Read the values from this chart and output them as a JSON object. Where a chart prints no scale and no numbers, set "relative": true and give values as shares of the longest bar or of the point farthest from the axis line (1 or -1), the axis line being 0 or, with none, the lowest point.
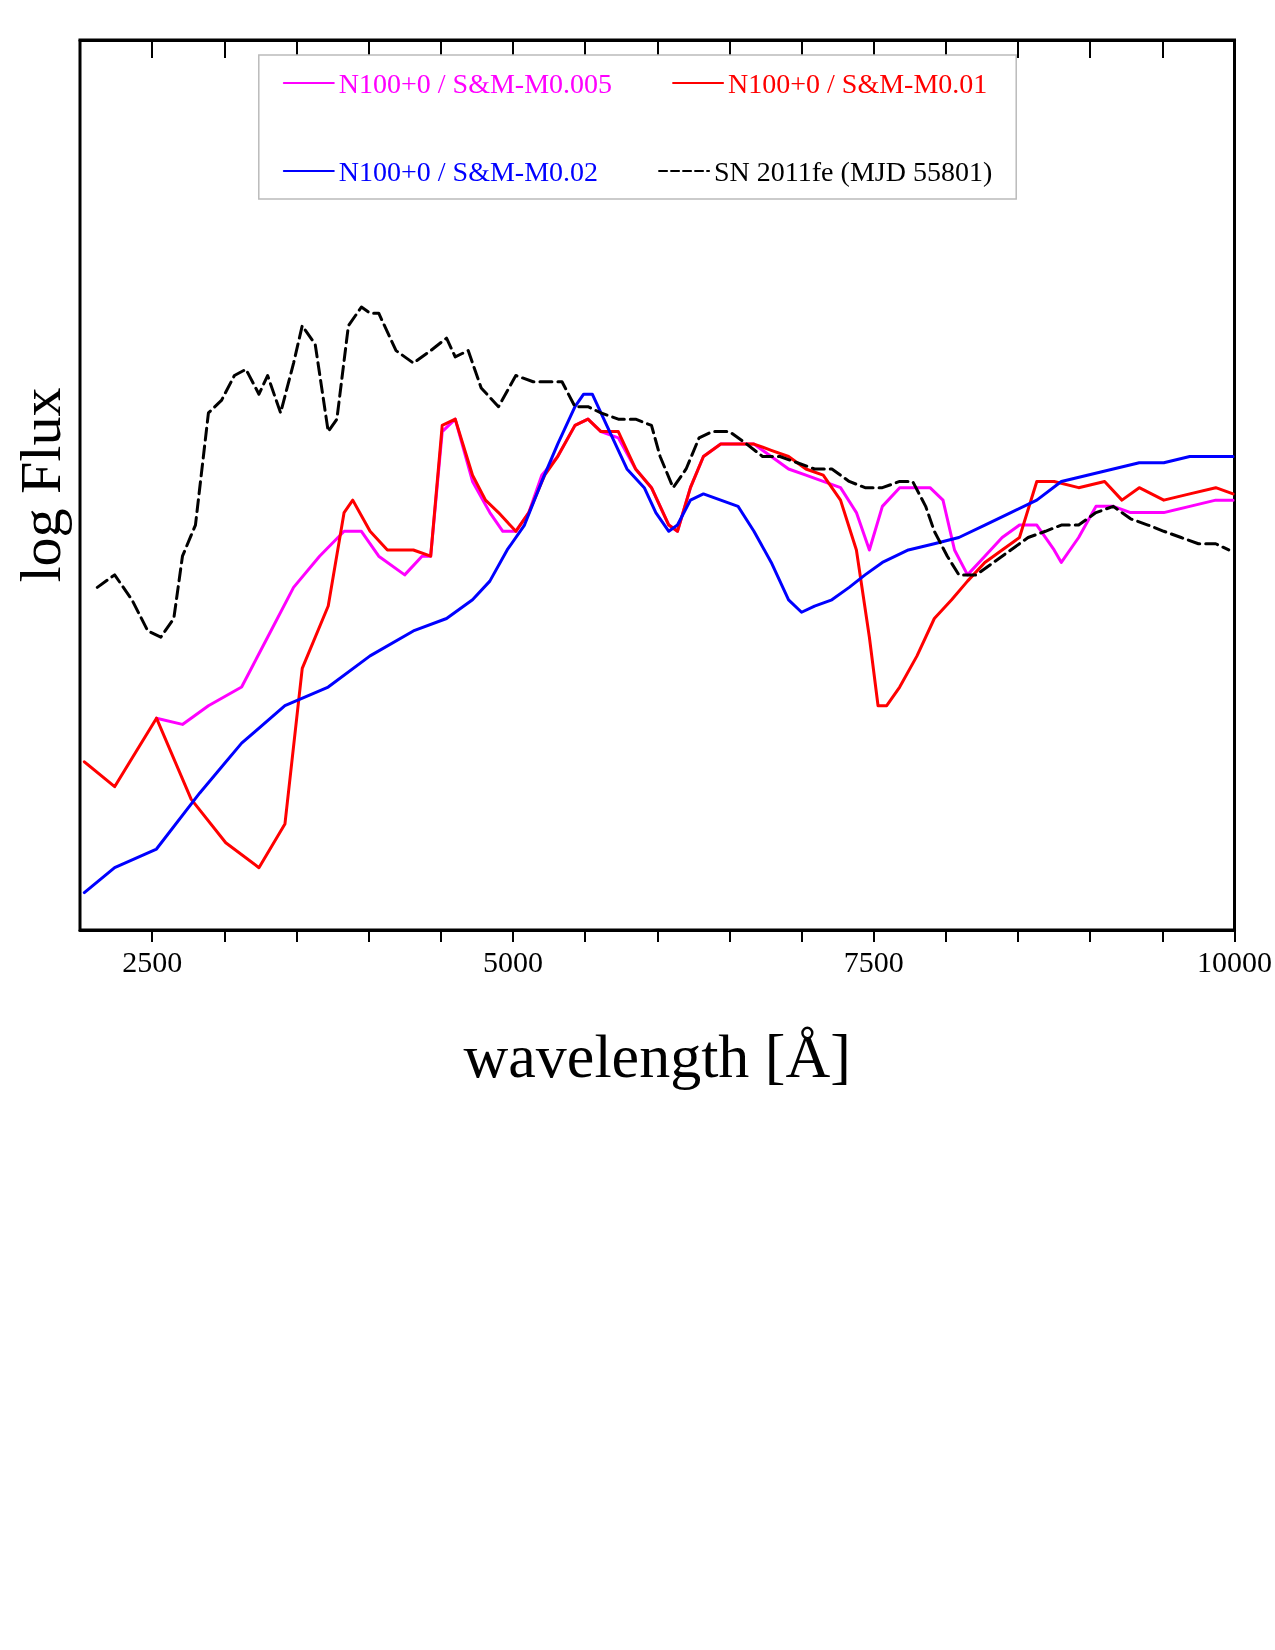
{
  "chart_data": {
    "type": "line",
    "relative": true,
    "xlabel": "wavelength [Å]",
    "ylabel": "log Flux",
    "xlim": [
      2000,
      10000
    ],
    "xticks": [
      2500,
      {
        "value": 3000,
        "label": null
      },
      {
        "value": 3500,
        "label": null
      },
      {
        "value": 4000,
        "label": null
      },
      {
        "value": 4500,
        "label": null
      },
      5000,
      {
        "value": 5500,
        "label": null
      },
      {
        "value": 6000,
        "label": null
      },
      {
        "value": 6500,
        "label": null
      },
      {
        "value": 7000,
        "label": null
      },
      7500,
      {
        "value": 8000,
        "label": null
      },
      {
        "value": 8500,
        "label": null
      },
      {
        "value": 9000,
        "label": null
      },
      {
        "value": 9500,
        "label": null
      },
      10000
    ],
    "legend": "top",
    "grid": false,
    "marker": "none",
    "series": [
      {
        "name": "N100+0 / S&M-M0.005",
        "color": "#ff00ff",
        "line_style": "solid",
        "x": [
          2530,
          2710,
          2890,
          3120,
          3300,
          3480,
          3660,
          3830,
          3950,
          4070,
          4250,
          4370,
          4430,
          4510,
          4600,
          4720,
          4840,
          4930,
          5020,
          5110,
          5200,
          5310,
          5430,
          5520,
          5610,
          5730,
          5850,
          5960,
          6080,
          6140,
          6230,
          6320,
          6440,
          6560,
          6670,
          6790,
          6910,
          7030,
          7150,
          7270,
          7380,
          7470,
          7560,
          7680,
          7800,
          7890,
          7980,
          8060,
          8150,
          8270,
          8390,
          8510,
          8630,
          8750,
          8800,
          8920,
          9040,
          9160,
          9280,
          9400,
          9510,
          9690,
          9870,
          9990
        ],
        "values": [
          0.34,
          0.33,
          0.36,
          0.39,
          0.47,
          0.55,
          0.6,
          0.64,
          0.64,
          0.6,
          0.57,
          0.6,
          0.6,
          0.8,
          0.82,
          0.72,
          0.67,
          0.64,
          0.64,
          0.67,
          0.73,
          0.76,
          0.81,
          0.82,
          0.8,
          0.79,
          0.74,
          0.71,
          0.65,
          0.64,
          0.71,
          0.76,
          0.78,
          0.78,
          0.78,
          0.76,
          0.74,
          0.73,
          0.72,
          0.71,
          0.67,
          0.61,
          0.68,
          0.71,
          0.71,
          0.71,
          0.69,
          0.61,
          0.57,
          0.6,
          0.63,
          0.65,
          0.65,
          0.61,
          0.59,
          0.63,
          0.68,
          0.68,
          0.67,
          0.67,
          0.67,
          0.68,
          0.69,
          0.69
        ]
      },
      {
        "name": "N100+0 / S&M-M0.01",
        "color": "#ff0000",
        "line_style": "solid",
        "x": [
          2030,
          2240,
          2530,
          2770,
          3010,
          3240,
          3420,
          3540,
          3720,
          3830,
          3890,
          4010,
          4130,
          4310,
          4430,
          4510,
          4600,
          4720,
          4810,
          4900,
          5020,
          5110,
          5220,
          5310,
          5430,
          5520,
          5610,
          5730,
          5850,
          5960,
          6080,
          6140,
          6230,
          6320,
          6440,
          6560,
          6670,
          6790,
          6910,
          7030,
          7150,
          7270,
          7380,
          7470,
          7530,
          7590,
          7680,
          7800,
          7920,
          8040,
          8150,
          8270,
          8390,
          8510,
          8630,
          8750,
          8920,
          9100,
          9220,
          9340,
          9510,
          9690,
          9870,
          9990
        ],
        "values": [
          0.27,
          0.23,
          0.34,
          0.21,
          0.14,
          0.1,
          0.17,
          0.42,
          0.52,
          0.67,
          0.69,
          0.64,
          0.61,
          0.61,
          0.6,
          0.81,
          0.82,
          0.73,
          0.69,
          0.67,
          0.64,
          0.67,
          0.73,
          0.76,
          0.81,
          0.82,
          0.8,
          0.8,
          0.74,
          0.71,
          0.65,
          0.64,
          0.71,
          0.76,
          0.78,
          0.78,
          0.78,
          0.77,
          0.76,
          0.74,
          0.73,
          0.69,
          0.61,
          0.47,
          0.36,
          0.36,
          0.39,
          0.44,
          0.5,
          0.53,
          0.56,
          0.59,
          0.61,
          0.63,
          0.72,
          0.72,
          0.71,
          0.72,
          0.69,
          0.71,
          0.69,
          0.7,
          0.71,
          0.7
        ]
      },
      {
        "name": "N100+0 / S&M-M0.02",
        "color": "#0000ff",
        "line_style": "solid",
        "x": [
          2030,
          2240,
          2530,
          2830,
          3120,
          3420,
          3720,
          4010,
          4310,
          4540,
          4720,
          4840,
          4960,
          5080,
          5200,
          5310,
          5430,
          5490,
          5550,
          5670,
          5790,
          5910,
          5990,
          6080,
          6140,
          6230,
          6320,
          6440,
          6560,
          6670,
          6790,
          6910,
          7000,
          7090,
          7210,
          7330,
          7440,
          7560,
          7740,
          7920,
          8090,
          8270,
          8450,
          8630,
          8800,
          8980,
          9160,
          9340,
          9510,
          9690,
          9870,
          9990
        ],
        "values": [
          0.06,
          0.1,
          0.13,
          0.22,
          0.3,
          0.36,
          0.39,
          0.44,
          0.48,
          0.5,
          0.53,
          0.56,
          0.61,
          0.65,
          0.72,
          0.78,
          0.84,
          0.86,
          0.86,
          0.8,
          0.74,
          0.71,
          0.67,
          0.64,
          0.65,
          0.69,
          0.7,
          0.69,
          0.68,
          0.64,
          0.59,
          0.53,
          0.51,
          0.52,
          0.53,
          0.55,
          0.57,
          0.59,
          0.61,
          0.62,
          0.63,
          0.65,
          0.67,
          0.69,
          0.72,
          0.73,
          0.74,
          0.75,
          0.75,
          0.76,
          0.76,
          0.76
        ]
      },
      {
        "name": "SN 2011fe (MJD 55801)",
        "color": "#000000",
        "line_style": "dashed",
        "x": [
          2120,
          2240,
          2360,
          2470,
          2560,
          2650,
          2710,
          2800,
          2890,
          2980,
          3070,
          3150,
          3240,
          3300,
          3390,
          3480,
          3540,
          3630,
          3720,
          3780,
          3860,
          3950,
          4010,
          4070,
          4190,
          4310,
          4430,
          4540,
          4600,
          4690,
          4780,
          4900,
          5020,
          5140,
          5250,
          5340,
          5430,
          5520,
          5610,
          5730,
          5850,
          5960,
          6020,
          6110,
          6200,
          6290,
          6380,
          6500,
          6620,
          6730,
          6850,
          6970,
          7090,
          7210,
          7330,
          7440,
          7560,
          7680,
          7770,
          7860,
          7920,
          8010,
          8090,
          8210,
          8330,
          8450,
          8570,
          8690,
          8800,
          8920,
          9040,
          9160,
          9280,
          9400,
          9510,
          9630,
          9750,
          9870,
          9960
        ],
        "values": [
          0.55,
          0.57,
          0.53,
          0.48,
          0.47,
          0.5,
          0.6,
          0.65,
          0.83,
          0.85,
          0.89,
          0.9,
          0.86,
          0.89,
          0.83,
          0.91,
          0.97,
          0.94,
          0.8,
          0.82,
          0.97,
          1.0,
          0.99,
          0.99,
          0.93,
          0.91,
          0.93,
          0.95,
          0.92,
          0.93,
          0.87,
          0.84,
          0.89,
          0.88,
          0.88,
          0.88,
          0.84,
          0.84,
          0.83,
          0.82,
          0.82,
          0.81,
          0.76,
          0.71,
          0.74,
          0.79,
          0.8,
          0.8,
          0.78,
          0.76,
          0.76,
          0.75,
          0.74,
          0.74,
          0.72,
          0.71,
          0.71,
          0.72,
          0.72,
          0.68,
          0.64,
          0.6,
          0.57,
          0.57,
          0.59,
          0.61,
          0.63,
          0.64,
          0.65,
          0.65,
          0.67,
          0.68,
          0.66,
          0.65,
          0.64,
          0.63,
          0.62,
          0.62,
          0.61
        ]
      }
    ]
  }
}
